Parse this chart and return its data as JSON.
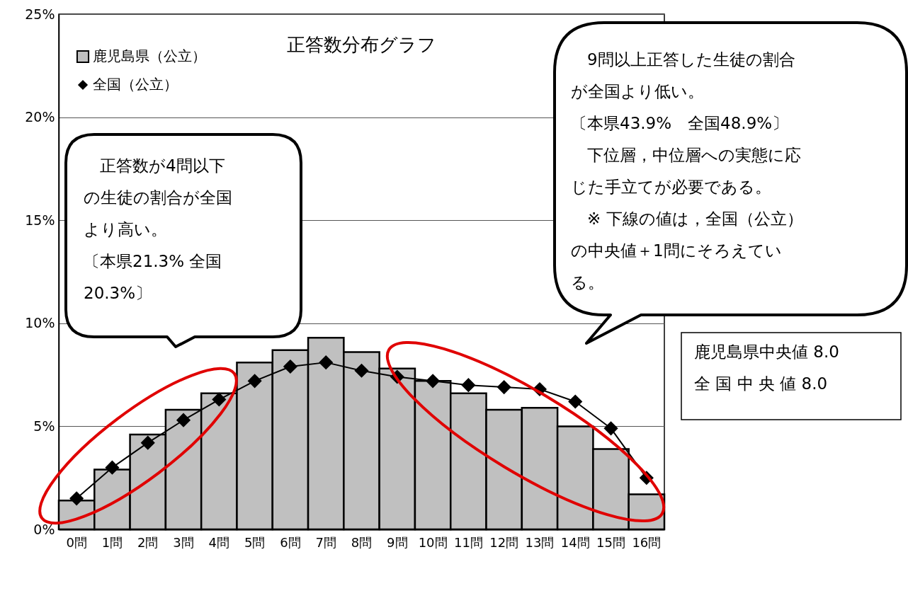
{
  "chart_data": {
    "type": "bar",
    "title": "正答数分布グラフ",
    "categories": [
      "0問",
      "1問",
      "2問",
      "3問",
      "4問",
      "5問",
      "6問",
      "7問",
      "8問",
      "9問",
      "10問",
      "11問",
      "12問",
      "13問",
      "14問",
      "15問",
      "16問"
    ],
    "series": [
      {
        "name": "鹿児島県（公立）",
        "color": "#c0c0c0",
        "values": [
          1.4,
          2.9,
          4.6,
          5.8,
          6.6,
          8.1,
          8.7,
          9.3,
          8.6,
          7.8,
          7.2,
          6.6,
          5.8,
          5.9,
          5.0,
          3.9,
          1.7
        ]
      },
      {
        "name": "全国（公立）",
        "type": "line",
        "color": "#000000",
        "values": [
          1.5,
          3.0,
          4.2,
          5.3,
          6.3,
          7.2,
          7.9,
          8.1,
          7.7,
          7.4,
          7.2,
          7.0,
          6.9,
          6.8,
          6.2,
          4.9,
          2.5
        ]
      }
    ],
    "ylim": [
      0,
      25
    ],
    "yticks": [
      {
        "value": 0,
        "label": "0%"
      },
      {
        "value": 5,
        "label": "5%"
      },
      {
        "value": 10,
        "label": "10%"
      },
      {
        "value": 15,
        "label": "15%"
      },
      {
        "value": 20,
        "label": "20%"
      },
      {
        "value": 25,
        "label": "25%"
      }
    ],
    "grid": "y",
    "legend": "top left",
    "marker": "diamond",
    "line_style": "solid",
    "annotations": [
      "　正答数が4問以下の生徒の割合が全国より高い。",
      "〔本県21.3% 全国20.3%〕",
      "　9問以上正答した生徒の割合が全国より低い。",
      "〔本県43.9%　全国48.9%〕",
      "　下位層，中位層への実態に応じた手立てが必要である。",
      "　※ 下線の値は，全国（公立）の中央値＋1問にそろえている。",
      "鹿児島県中央値 8.0",
      "全 国 中 央 値 8.0"
    ]
  }
}
